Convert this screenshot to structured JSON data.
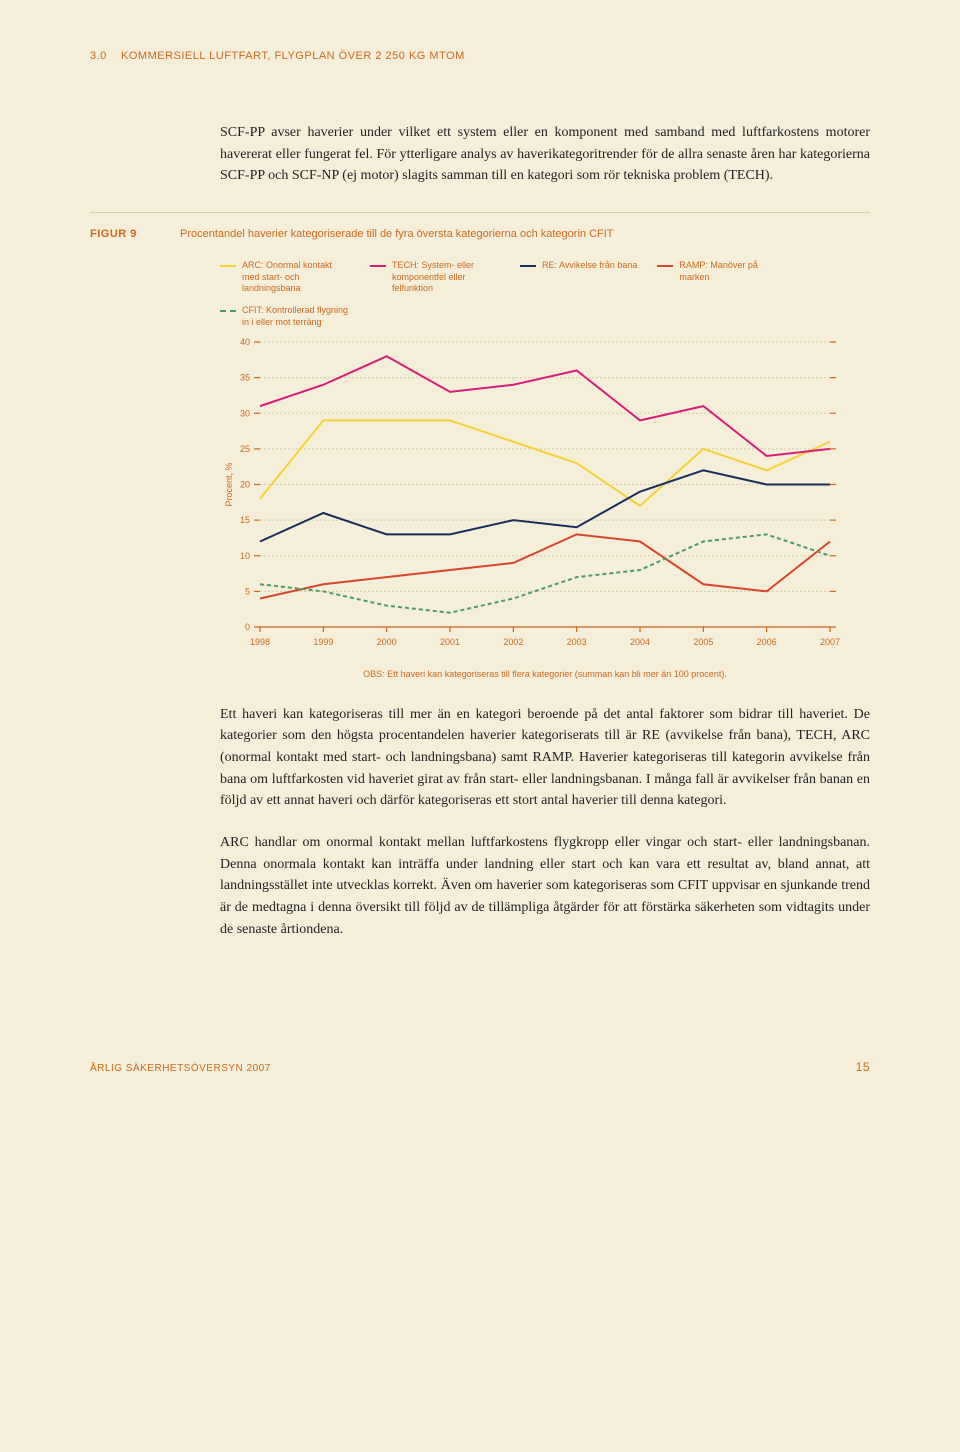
{
  "header": {
    "section": "3.0",
    "title": "KOMMERSIELL LUFTFART, FLYGPLAN ÖVER 2 250 KG MTOM"
  },
  "para1": "SCF-PP avser haverier under vilket ett system eller en komponent med samband med luftfarkostens motorer havererat eller fungerat fel. För ytterligare analys av haverikategoritrender för de allra senaste åren har kategorierna SCF-PP och SCF-NP (ej motor) slagits samman till en kategori som rör tekniska problem (TECH).",
  "figure": {
    "label": "FIGUR 9",
    "caption": "Procentandel haverier kategoriserade till de fyra översta kategorierna och kategorin CFIT"
  },
  "chart": {
    "y_label": "Procent, %",
    "ylim": [
      0,
      40
    ],
    "y_ticks": [
      0,
      5,
      10,
      15,
      20,
      25,
      30,
      35,
      40
    ],
    "x_values": [
      1998,
      1999,
      2000,
      2001,
      2002,
      2003,
      2004,
      2005,
      2006,
      2007
    ],
    "background_color": "#f5eed9",
    "grid_color": "#d6cda8",
    "axis_color": "#c96b1e",
    "series": [
      {
        "name": "ARC",
        "label": "ARC: Onormal kontakt med start- och landningsbana",
        "color": "#f4d235",
        "style": "solid",
        "values": [
          18,
          29,
          29,
          29,
          26,
          23,
          17,
          25,
          22,
          26
        ]
      },
      {
        "name": "TECH",
        "label": "TECH: System- eller komponentfel eller felfunktion",
        "color": "#d81e7b",
        "style": "solid",
        "values": [
          31,
          34,
          38,
          33,
          34,
          36,
          29,
          31,
          24,
          25
        ]
      },
      {
        "name": "RE",
        "label": "RE: Avvikelse från bana",
        "color": "#1a2e5c",
        "style": "solid",
        "values": [
          12,
          16,
          13,
          13,
          15,
          14,
          19,
          22,
          20,
          20
        ]
      },
      {
        "name": "RAMP",
        "label": "RAMP: Manöver på marken",
        "color": "#d9452a",
        "style": "solid",
        "values": [
          4,
          6,
          7,
          8,
          9,
          13,
          12,
          6,
          5,
          12
        ]
      },
      {
        "name": "CFIT",
        "label": "CFIT: Kontrollerad flygning in i eller mot terräng",
        "color": "#4a9a6a",
        "style": "dashed",
        "values": [
          6,
          5,
          3,
          2,
          4,
          7,
          8,
          12,
          13,
          10
        ]
      }
    ],
    "note": "OBS: Ett haveri kan kategoriseras till flera kategorier (summan kan bli mer än 100 procent)."
  },
  "para2": "Ett haveri kan kategoriseras till mer än en kategori beroende på det antal faktorer som bidrar till haveriet. De kategorier som den högsta procentandelen haverier kategoriserats till är RE (avvikelse från bana), TECH, ARC (onormal kontakt med start- och landningsbana) samt RAMP. Haverier kategoriseras till kategorin avvikelse från bana om luftfarkosten vid haveriet girat av från start- eller landningsbanan. I många fall är avvikelser från banan en följd av ett annat haveri och därför kategoriseras ett stort antal haverier till denna kategori.",
  "para3": "ARC handlar om onormal kontakt mellan luftfarkostens flygkropp eller vingar och start- eller landningsbanan. Denna onormala kontakt kan inträffa under landning eller start och kan vara ett resultat av, bland annat, att landningsstället inte utvecklas korrekt. Även om haverier som kategoriseras som CFIT uppvisar en sjunkande trend är de medtagna i denna översikt till följd av de tillämpliga åtgärder för att förstärka säkerheten som vidtagits under de senaste årtiondena.",
  "footer": {
    "text": "ÅRLIG SÄKERHETSÖVERSYN 2007",
    "page": "15"
  }
}
